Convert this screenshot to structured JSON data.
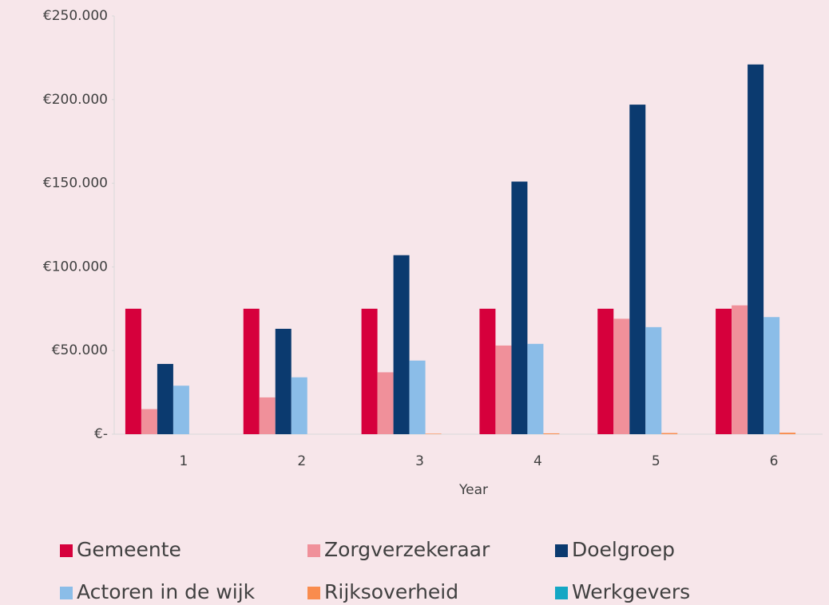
{
  "chart_data": {
    "type": "bar",
    "x_label": "Year",
    "categories": [
      "1",
      "2",
      "3",
      "4",
      "5",
      "6"
    ],
    "series": [
      {
        "name": "Gemeente",
        "color": "#d6003c",
        "values": [
          75000,
          75000,
          75000,
          75000,
          75000,
          75000
        ]
      },
      {
        "name": "Zorgverzekeraar",
        "color": "#f0909a",
        "values": [
          15000,
          22000,
          37000,
          53000,
          69000,
          77000
        ]
      },
      {
        "name": "Doelgroep",
        "color": "#0b3a6f",
        "values": [
          42000,
          63000,
          107000,
          151000,
          197000,
          221000
        ]
      },
      {
        "name": "Actoren in de wijk",
        "color": "#8bbde8",
        "values": [
          29000,
          34000,
          44000,
          54000,
          64000,
          70000
        ]
      },
      {
        "name": "Rijksoverheid",
        "color": "#f98c4e",
        "values": [
          0,
          0,
          300,
          500,
          700,
          900
        ]
      },
      {
        "name": "Werkgevers",
        "color": "#14a7c4",
        "values": [
          0,
          0,
          0,
          0,
          0,
          0
        ]
      }
    ],
    "ylim": [
      0,
      250000
    ],
    "yticks": [
      {
        "value": 0,
        "label": "€-"
      },
      {
        "value": 50000,
        "label": "€50.000"
      },
      {
        "value": 100000,
        "label": "€100.000"
      },
      {
        "value": 150000,
        "label": "€150.000"
      },
      {
        "value": 200000,
        "label": "€200.000"
      },
      {
        "value": 250000,
        "label": "€250.000"
      }
    ],
    "grid": false,
    "legend": "bottom"
  }
}
